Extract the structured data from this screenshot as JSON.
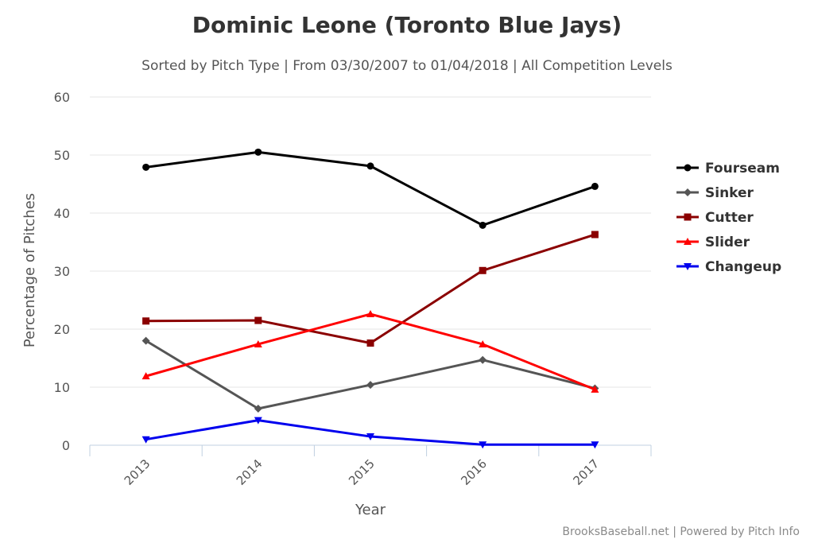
{
  "chart_data": {
    "type": "line",
    "title": "Dominic Leone (Toronto Blue Jays)",
    "subtitle": "Sorted by Pitch Type | From 03/30/2007 to 01/04/2018 | All Competition Levels",
    "xlabel": "Year",
    "ylabel": "Percentage of Pitches",
    "categories": [
      "2013",
      "2014",
      "2015",
      "2016",
      "2017"
    ],
    "ylim": [
      0,
      60
    ],
    "yticks": [
      "0",
      "10",
      "20",
      "30",
      "40",
      "50",
      "60"
    ],
    "grid": true,
    "legend_position": "right",
    "series": [
      {
        "name": "Fourseam",
        "color": "#000000",
        "marker": "circle",
        "values": [
          47.9,
          50.5,
          48.1,
          37.9,
          44.6
        ]
      },
      {
        "name": "Sinker",
        "color": "#555555",
        "marker": "diamond",
        "values": [
          18.0,
          6.3,
          10.4,
          14.7,
          9.8
        ]
      },
      {
        "name": "Cutter",
        "color": "#8b0000",
        "marker": "square",
        "values": [
          21.4,
          21.5,
          17.6,
          30.1,
          36.3
        ]
      },
      {
        "name": "Slider",
        "color": "#ff0000",
        "marker": "triangle",
        "values": [
          11.9,
          17.4,
          22.6,
          17.4,
          9.6
        ]
      },
      {
        "name": "Changeup",
        "color": "#0000ee",
        "marker": "triangle-down",
        "values": [
          1.0,
          4.3,
          1.5,
          0.1,
          0.1
        ]
      }
    ],
    "credits": "BrooksBaseball.net | Powered by Pitch Info"
  }
}
